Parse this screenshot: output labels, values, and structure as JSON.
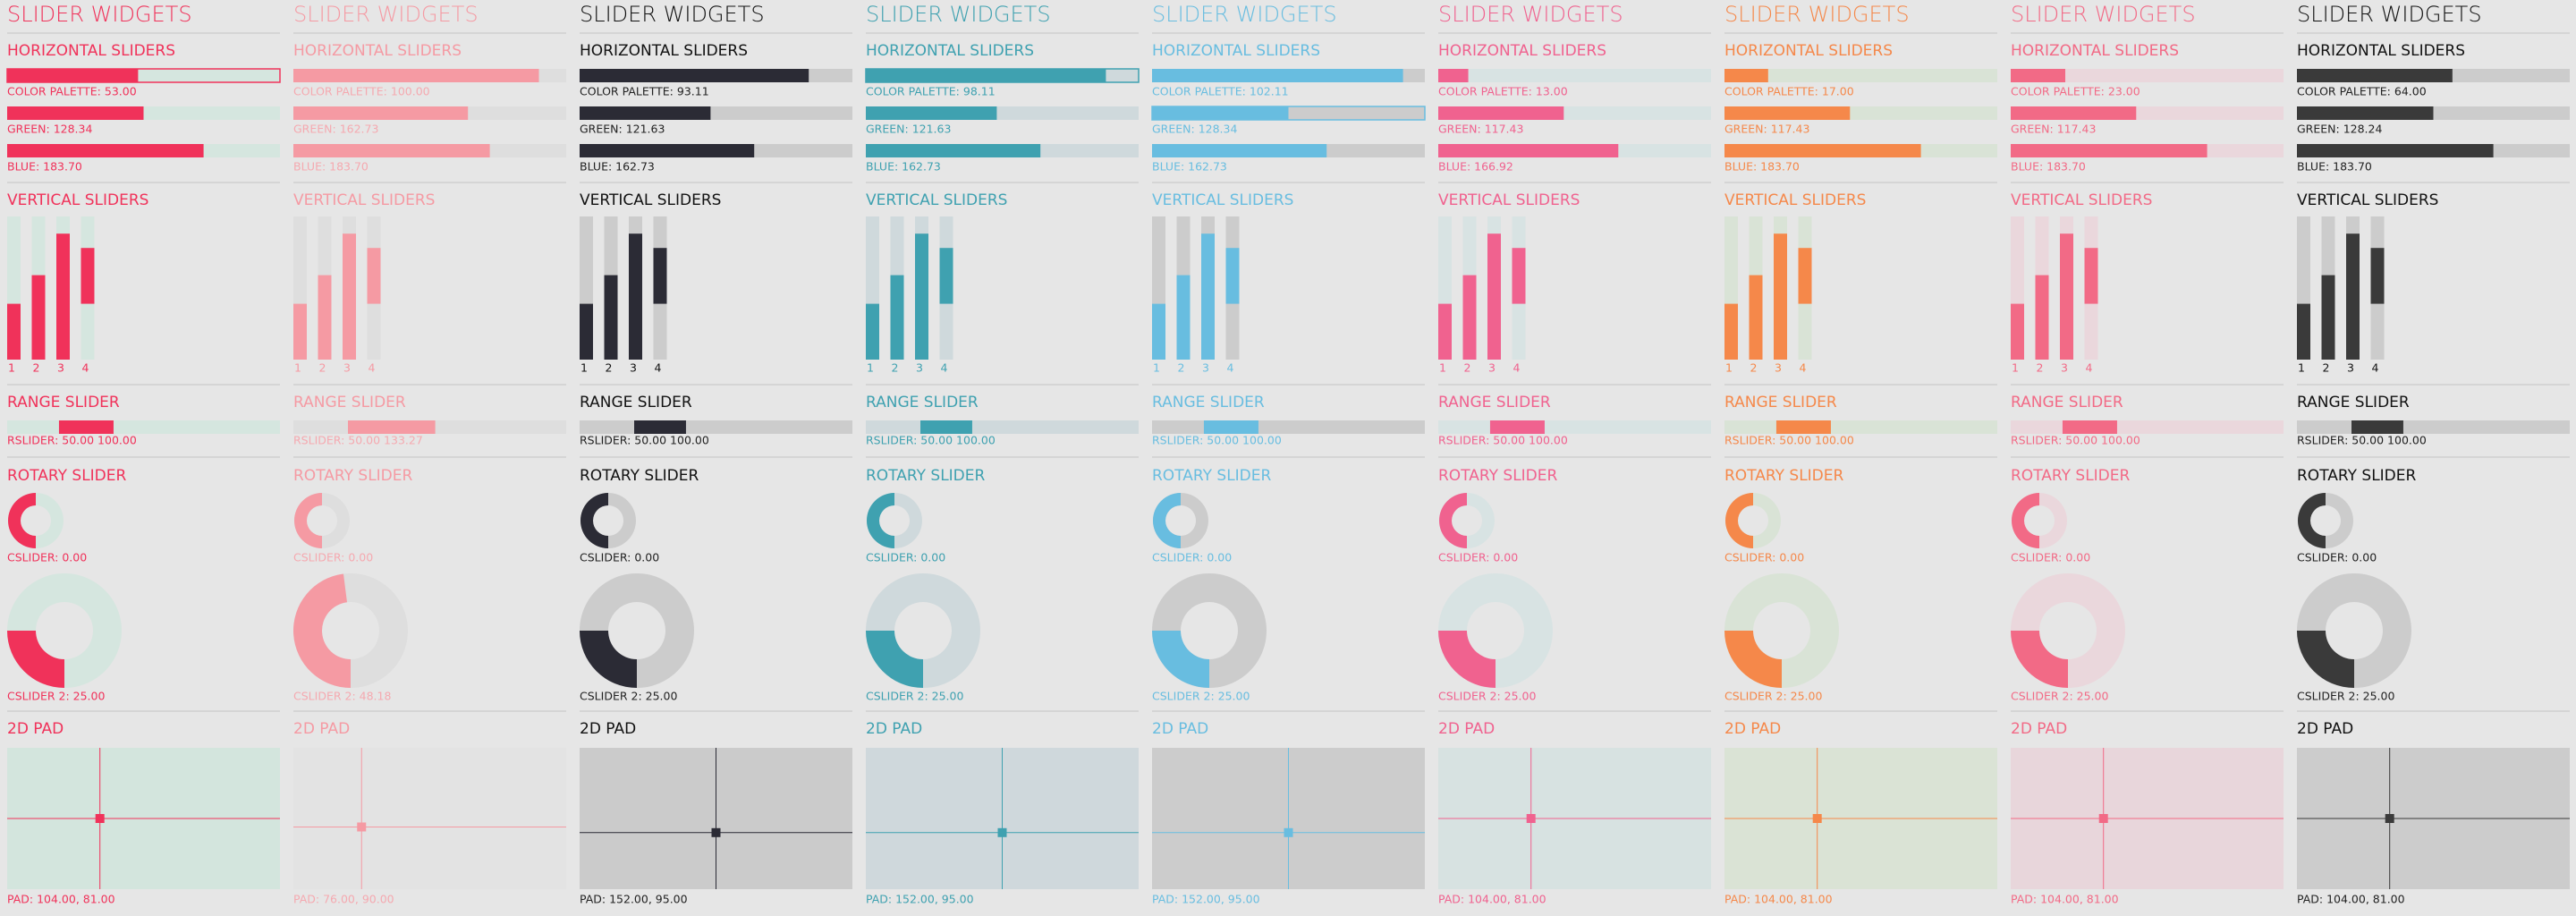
{
  "columns": [
    {
      "title": "SLIDER WIDGETS",
      "horizontal_heading": "HORIZONTAL SLIDERS",
      "color_palette": "COLOR PALETTE: 53.00",
      "green": "GREEN: 128.34",
      "blue": "BLUE: 183.70",
      "vertical_heading": "VERTICAL SLIDERS",
      "vertical_labels": [
        "1",
        "2",
        "3",
        "4"
      ],
      "range_heading": "RANGE SLIDER",
      "range_label": "RSLIDER: 50.00 100.00",
      "rotary_heading": "ROTARY SLIDER",
      "cslider_label": "CSLIDER: 0.00",
      "cslider2_label": "CSLIDER 2: 25.00",
      "pad_heading": "2D PAD",
      "pad_label": "PAD: 104.00, 81.00"
    },
    {
      "title": "SLIDER WIDGETS",
      "horizontal_heading": "HORIZONTAL SLIDERS",
      "color_palette": "COLOR PALETTE: 100.00",
      "green": "GREEN: 162.73",
      "blue": "BLUE: 183.70",
      "vertical_heading": "VERTICAL SLIDERS",
      "vertical_labels": [
        "1",
        "2",
        "3",
        "4"
      ],
      "range_heading": "RANGE SLIDER",
      "range_label": "RSLIDER: 50.00 133.27",
      "rotary_heading": "ROTARY SLIDER",
      "cslider_label": "CSLIDER: 0.00",
      "cslider2_label": "CSLIDER 2: 48.18",
      "pad_heading": "2D PAD",
      "pad_label": "PAD: 76.00, 90.00"
    },
    {
      "title": "SLIDER WIDGETS",
      "horizontal_heading": "HORIZONTAL SLIDERS",
      "color_palette": "COLOR PALETTE: 93.11",
      "green": "GREEN: 121.63",
      "blue": "BLUE: 162.73",
      "vertical_heading": "VERTICAL SLIDERS",
      "vertical_labels": [
        "1",
        "2",
        "3",
        "4"
      ],
      "range_heading": "RANGE SLIDER",
      "range_label": "RSLIDER: 50.00 100.00",
      "rotary_heading": "ROTARY SLIDER",
      "cslider_label": "CSLIDER: 0.00",
      "cslider2_label": "CSLIDER 2: 25.00",
      "pad_heading": "2D PAD",
      "pad_label": "PAD: 152.00, 95.00"
    },
    {
      "title": "SLIDER WIDGETS",
      "horizontal_heading": "HORIZONTAL SLIDERS",
      "color_palette": "COLOR PALETTE: 98.11",
      "green": "GREEN: 121.63",
      "blue": "BLUE: 162.73",
      "vertical_heading": "VERTICAL SLIDERS",
      "vertical_labels": [
        "1",
        "2",
        "3",
        "4"
      ],
      "range_heading": "RANGE SLIDER",
      "range_label": "RSLIDER: 50.00 100.00",
      "rotary_heading": "ROTARY SLIDER",
      "cslider_label": "CSLIDER: 0.00",
      "cslider2_label": "CSLIDER 2: 25.00",
      "pad_heading": "2D PAD",
      "pad_label": "PAD: 152.00, 95.00"
    },
    {
      "title": "SLIDER WIDGETS",
      "horizontal_heading": "HORIZONTAL SLIDERS",
      "color_palette": "COLOR PALETTE: 102.11",
      "green": "GREEN: 128.34",
      "blue": "BLUE: 162.73",
      "vertical_heading": "VERTICAL SLIDERS",
      "vertical_labels": [
        "1",
        "2",
        "3",
        "4"
      ],
      "range_heading": "RANGE SLIDER",
      "range_label": "RSLIDER: 50.00 100.00",
      "rotary_heading": "ROTARY SLIDER",
      "cslider_label": "CSLIDER: 0.00",
      "cslider2_label": "CSLIDER 2: 25.00",
      "pad_heading": "2D PAD",
      "pad_label": "PAD: 152.00, 95.00"
    },
    {
      "title": "SLIDER WIDGETS",
      "horizontal_heading": "HORIZONTAL SLIDERS",
      "color_palette": "COLOR PALETTE: 13.00",
      "green": "GREEN: 117.43",
      "blue": "BLUE: 166.92",
      "vertical_heading": "VERTICAL SLIDERS",
      "vertical_labels": [
        "1",
        "2",
        "3",
        "4"
      ],
      "range_heading": "RANGE SLIDER",
      "range_label": "RSLIDER: 50.00 100.00",
      "rotary_heading": "ROTARY SLIDER",
      "cslider_label": "CSLIDER: 0.00",
      "cslider2_label": "CSLIDER 2: 25.00",
      "pad_heading": "2D PAD",
      "pad_label": "PAD: 104.00, 81.00"
    },
    {
      "title": "SLIDER WIDGETS",
      "horizontal_heading": "HORIZONTAL SLIDERS",
      "color_palette": "COLOR PALETTE: 17.00",
      "green": "GREEN: 117.43",
      "blue": "BLUE: 183.70",
      "vertical_heading": "VERTICAL SLIDERS",
      "vertical_labels": [
        "1",
        "2",
        "3",
        "4"
      ],
      "range_heading": "RANGE SLIDER",
      "range_label": "RSLIDER: 50.00 100.00",
      "rotary_heading": "ROTARY SLIDER",
      "cslider_label": "CSLIDER: 0.00",
      "cslider2_label": "CSLIDER 2: 25.00",
      "pad_heading": "2D PAD",
      "pad_label": "PAD: 104.00, 81.00"
    },
    {
      "title": "SLIDER WIDGETS",
      "horizontal_heading": "HORIZONTAL SLIDERS",
      "color_palette": "COLOR PALETTE: 23.00",
      "green": "GREEN: 117.43",
      "blue": "BLUE: 183.70",
      "vertical_heading": "VERTICAL SLIDERS",
      "vertical_labels": [
        "1",
        "2",
        "3",
        "4"
      ],
      "range_heading": "RANGE SLIDER",
      "range_label": "RSLIDER: 50.00 100.00",
      "rotary_heading": "ROTARY SLIDER",
      "cslider_label": "CSLIDER: 0.00",
      "cslider2_label": "CSLIDER 2: 25.00",
      "pad_heading": "2D PAD",
      "pad_label": "PAD: 104.00, 81.00"
    },
    {
      "title": "SLIDER WIDGETS",
      "horizontal_heading": "HORIZONTAL SLIDERS",
      "color_palette": "COLOR PALETTE: 64.00",
      "green": "GREEN: 128.24",
      "blue": "BLUE: 183.70",
      "vertical_heading": "VERTICAL SLIDERS",
      "vertical_labels": [
        "1",
        "2",
        "3",
        "4"
      ],
      "range_heading": "RANGE SLIDER",
      "range_label": "RSLIDER: 50.00 100.00",
      "rotary_heading": "ROTARY SLIDER",
      "cslider_label": "CSLIDER: 0.00",
      "cslider2_label": "CSLIDER 2: 25.00",
      "pad_heading": "2D PAD",
      "pad_label": "PAD: 104.00, 81.00"
    }
  ]
}
